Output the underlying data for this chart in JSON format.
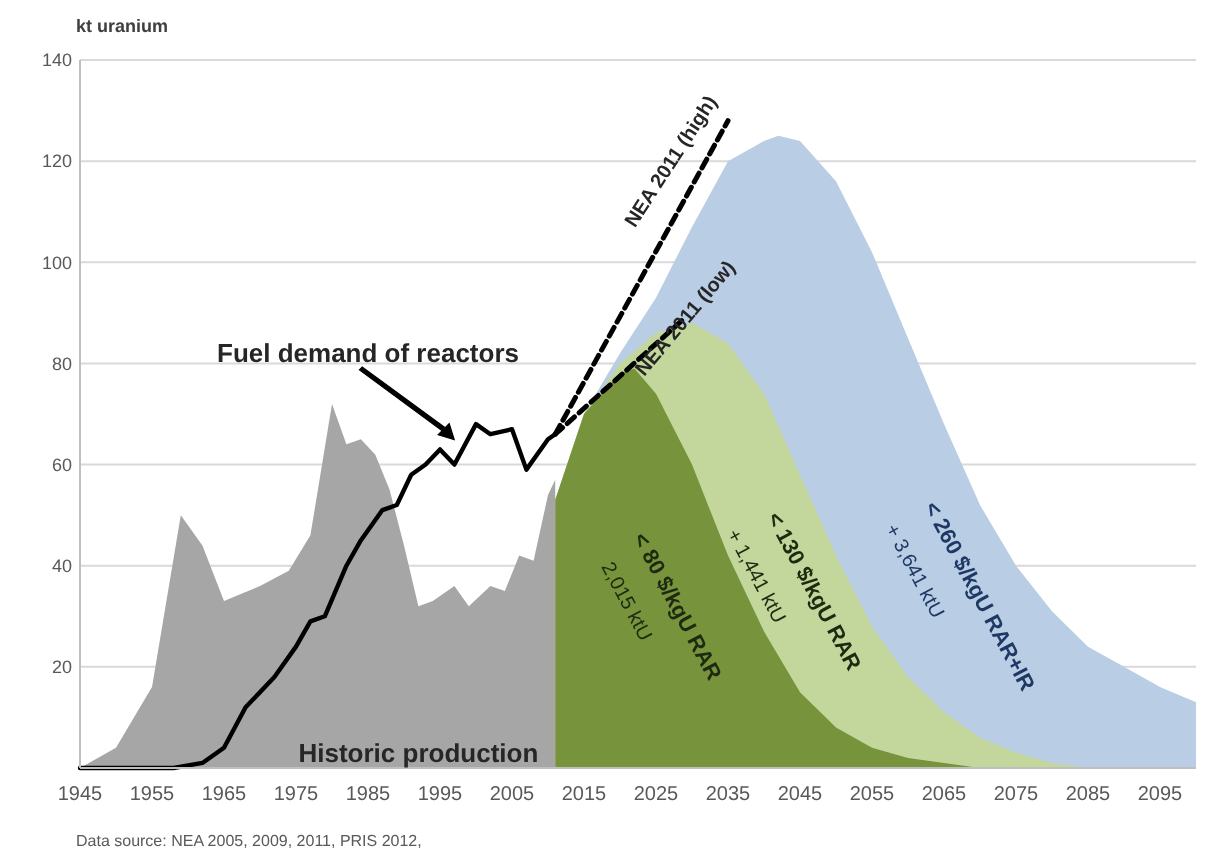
{
  "chart_data": {
    "type": "area",
    "ylabel": "kt uranium",
    "xlim": [
      1945,
      2100
    ],
    "xticks": [
      1945,
      1955,
      1965,
      1975,
      1985,
      1995,
      2005,
      2015,
      2025,
      2035,
      2045,
      2055,
      2065,
      2075,
      2085,
      2095
    ],
    "ylim": [
      0,
      140
    ],
    "yticks": [
      20,
      40,
      60,
      80,
      100,
      120,
      140
    ],
    "grid": "y",
    "series": [
      {
        "name": "< 260 $/kgU RAR+IR",
        "color": "#b9cde5",
        "x": [
          2011,
          2015,
          2020,
          2025,
          2030,
          2035,
          2040,
          2042,
          2045,
          2050,
          2055,
          2060,
          2065,
          2070,
          2075,
          2080,
          2085,
          2090,
          2095,
          2100
        ],
        "values": [
          53,
          70,
          82,
          93,
          107,
          120,
          124,
          125,
          124,
          116,
          102,
          85,
          68,
          52,
          40,
          31,
          24,
          20,
          16,
          13
        ]
      },
      {
        "name": "< 130 $/kgU RAR",
        "color": "#c3d69b",
        "x": [
          2011,
          2015,
          2020,
          2025,
          2030,
          2035,
          2040,
          2045,
          2050,
          2055,
          2060,
          2065,
          2070,
          2075,
          2080,
          2085
        ],
        "values": [
          53,
          70,
          80,
          86,
          88,
          84,
          74,
          58,
          42,
          28,
          18,
          11,
          6,
          3,
          1,
          0
        ]
      },
      {
        "name": "< 80 $/kgU RAR",
        "color": "#77933c",
        "x": [
          2011,
          2015,
          2020,
          2022,
          2025,
          2030,
          2035,
          2040,
          2045,
          2050,
          2055,
          2060,
          2065,
          2070
        ],
        "values": [
          53,
          70,
          78,
          79,
          74,
          60,
          42,
          27,
          15,
          8,
          4,
          2,
          1,
          0
        ]
      },
      {
        "name": "Historic production",
        "color": "#a6a6a6",
        "x": [
          1945,
          1950,
          1955,
          1959,
          1962,
          1965,
          1970,
          1974,
          1977,
          1980,
          1982,
          1984,
          1986,
          1988,
          1990,
          1992,
          1994,
          1997,
          1999,
          2002,
          2004,
          2006,
          2008,
          2010,
          2011
        ],
        "values": [
          0,
          4,
          16,
          50,
          44,
          33,
          36,
          39,
          46,
          72,
          64,
          65,
          62,
          55,
          44,
          32,
          33,
          36,
          32,
          36,
          35,
          42,
          41,
          54,
          57
        ]
      },
      {
        "name": "Fuel demand of reactors",
        "type": "line",
        "color": "#000000",
        "x": [
          1945,
          1958,
          1962,
          1965,
          1968,
          1972,
          1975,
          1977,
          1979,
          1982,
          1984,
          1987,
          1989,
          1991,
          1993,
          1995,
          1997,
          2000,
          2002,
          2005,
          2007,
          2010,
          2011
        ],
        "values": [
          0,
          0,
          1,
          4,
          12,
          18,
          24,
          29,
          30,
          40,
          45,
          51,
          52,
          58,
          60,
          63,
          60,
          68,
          66,
          67,
          59,
          65,
          66
        ]
      },
      {
        "name": "NEA 2011 (high)",
        "type": "line",
        "line_style": "dashed",
        "color": "#000000",
        "x": [
          2011,
          2035
        ],
        "values": [
          66,
          128
        ]
      },
      {
        "name": "NEA 2011 (low)",
        "type": "line",
        "line_style": "dashed",
        "color": "#000000",
        "x": [
          2011,
          2029
        ],
        "values": [
          66,
          89
        ]
      }
    ],
    "annotations": [
      "+ 3,641 ktU",
      "+ 1,441 ktU",
      "2,015 ktU",
      "Data source: NEA 2005, 2009, 2011, PRIS 2012,"
    ]
  }
}
